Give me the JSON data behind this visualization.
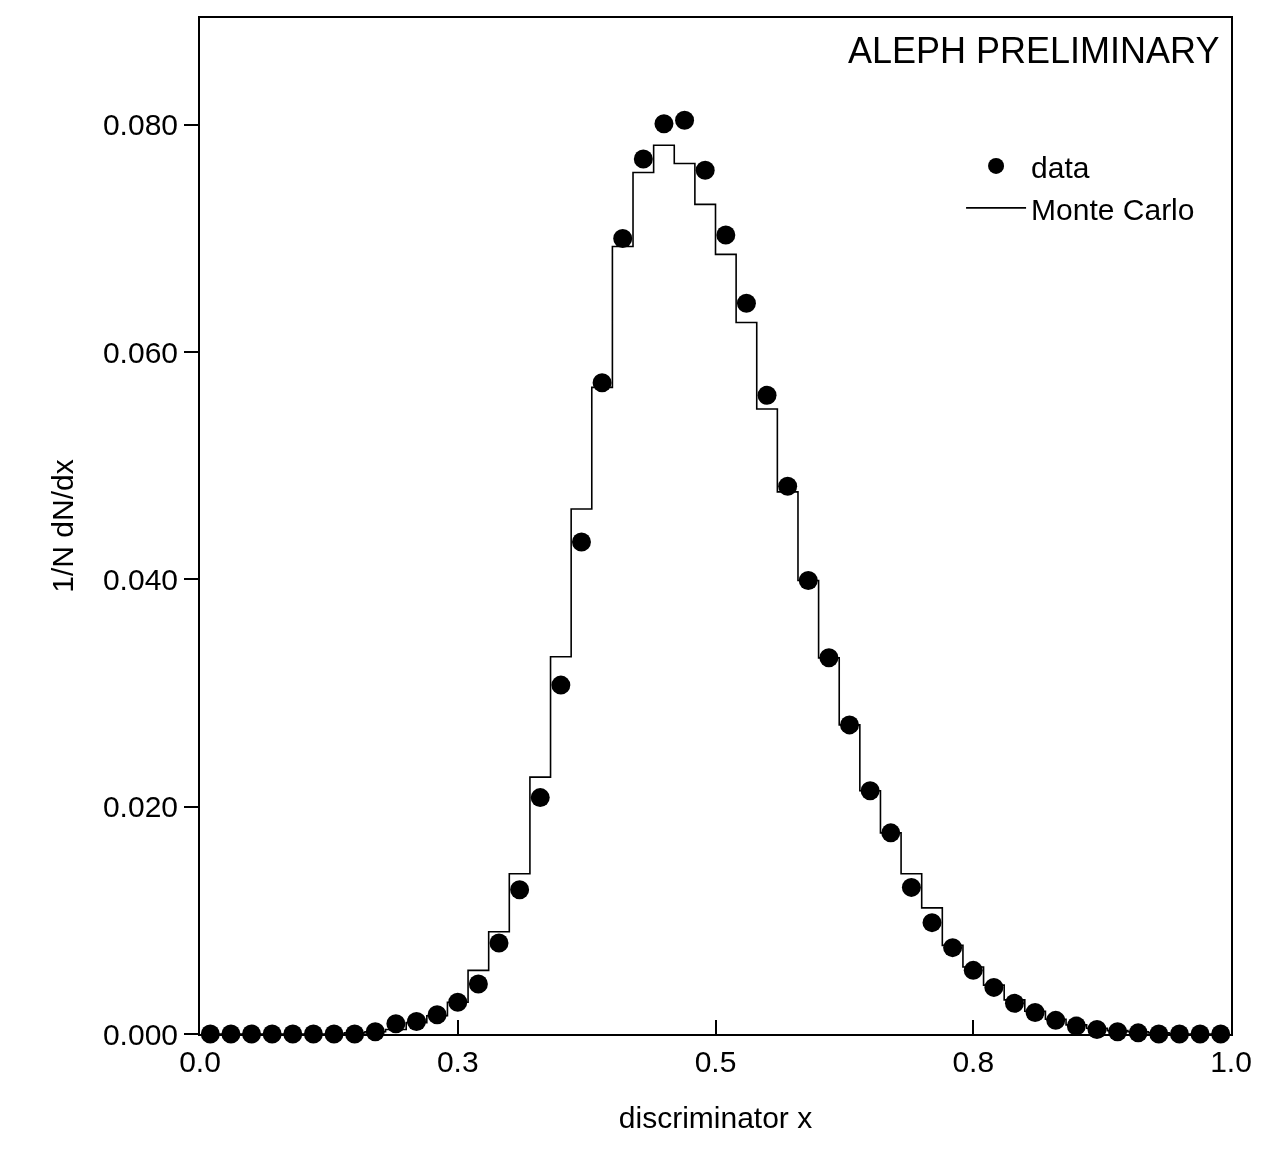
{
  "chart_data": {
    "type": "scatter",
    "xlabel": "discriminator x",
    "ylabel": "1/N dN/dx",
    "annotations": [
      "ALEPH PRELIMINARY"
    ],
    "x": [
      0.01,
      0.03,
      0.05,
      0.07,
      0.09,
      0.11,
      0.13,
      0.15,
      0.17,
      0.19,
      0.21,
      0.23,
      0.25,
      0.27,
      0.29,
      0.31,
      0.33,
      0.35,
      0.37,
      0.39,
      0.41,
      0.43,
      0.45,
      0.47,
      0.49,
      0.51,
      0.53,
      0.55,
      0.57,
      0.59,
      0.61,
      0.63,
      0.65,
      0.67,
      0.69,
      0.71,
      0.73,
      0.75,
      0.77,
      0.79,
      0.81,
      0.83,
      0.85,
      0.87,
      0.89,
      0.91,
      0.93,
      0.95,
      0.97,
      0.99
    ],
    "series": [
      {
        "name": "data",
        "color": "#000000",
        "marker": "circle",
        "values": [
          0,
          0,
          0,
          0,
          0,
          0,
          0,
          0,
          0.0002,
          0.0009,
          0.0011,
          0.0017,
          0.0028,
          0.0044,
          0.008,
          0.0127,
          0.0208,
          0.0307,
          0.0433,
          0.0573,
          0.07,
          0.077,
          0.0801,
          0.0804,
          0.076,
          0.0703,
          0.0643,
          0.0562,
          0.0482,
          0.0399,
          0.0331,
          0.0272,
          0.0214,
          0.0177,
          0.0129,
          0.0098,
          0.0076,
          0.0056,
          0.0041,
          0.0027,
          0.0019,
          0.0012,
          0.0007,
          0.0004,
          0.0002,
          0.0001,
          0,
          0,
          0,
          0
        ]
      },
      {
        "name": "Monte Carlo",
        "type": "step",
        "color": "#000000",
        "marker": "none",
        "line_style": "solid",
        "values": [
          0,
          0,
          0,
          0,
          0,
          0,
          0,
          0.0001,
          0.0002,
          0.0004,
          0.001,
          0.0016,
          0.0028,
          0.0056,
          0.009,
          0.0141,
          0.0226,
          0.0332,
          0.0462,
          0.0569,
          0.0693,
          0.0758,
          0.0782,
          0.0766,
          0.073,
          0.0686,
          0.0626,
          0.055,
          0.0477,
          0.0399,
          0.0331,
          0.0272,
          0.0214,
          0.0177,
          0.0141,
          0.0111,
          0.0078,
          0.0059,
          0.0043,
          0.003,
          0.002,
          0.0013,
          0.0008,
          0.0005,
          0.0003,
          0.0002,
          0.0001,
          0,
          0,
          0
        ]
      }
    ],
    "xlim": [
      0,
      1
    ],
    "xticks": [
      {
        "value": 0,
        "label": "0.0"
      },
      {
        "value": 0.25,
        "label": "0.3"
      },
      {
        "value": 0.5,
        "label": "0.5"
      },
      {
        "value": 0.75,
        "label": "0.8"
      },
      {
        "value": 1,
        "label": "1.0"
      }
    ],
    "ylim": [
      0,
      0.0894
    ],
    "yticks": [
      {
        "value": 0,
        "label": "0.000"
      },
      {
        "value": 0.02,
        "label": "0.020"
      },
      {
        "value": 0.04,
        "label": "0.040"
      },
      {
        "value": 0.06,
        "label": "0.060"
      },
      {
        "value": 0.08,
        "label": "0.080"
      }
    ],
    "legend": "top right"
  }
}
